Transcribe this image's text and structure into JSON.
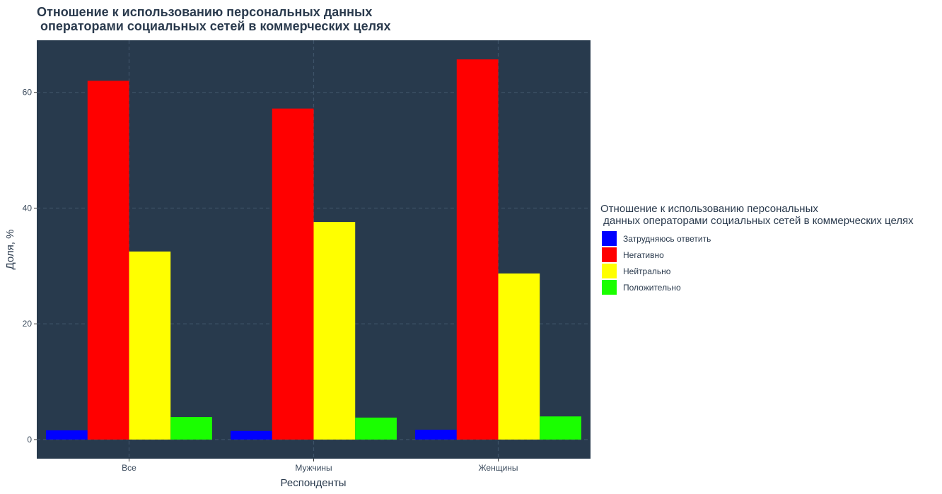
{
  "chart_data": {
    "type": "bar",
    "title_lines": [
      "Отношение к использованию персональных данных",
      " операторами социальных сетей в коммерческих целях"
    ],
    "xlabel": "Респонденты",
    "ylabel": "Доля, %",
    "categories": [
      "Все",
      "Мужчины",
      "Женщины"
    ],
    "yticks": [
      0,
      20,
      40,
      60
    ],
    "ylim": [
      -3.3,
      69
    ],
    "grid": true,
    "legend_position": "right",
    "legend_title_lines": [
      "Отношение к использованию персональных",
      " данных операторами социальных сетей в коммерческих целях"
    ],
    "series": [
      {
        "name": "Затрудняюсь ответить",
        "color": "#0000ff",
        "values": [
          1.6,
          1.5,
          1.7
        ]
      },
      {
        "name": "Негативно",
        "color": "#ff0000",
        "values": [
          62.0,
          57.2,
          65.7
        ]
      },
      {
        "name": "Нейтрально",
        "color": "#ffff00",
        "values": [
          32.5,
          37.6,
          28.7
        ]
      },
      {
        "name": "Положительно",
        "color": "#1aff00",
        "values": [
          3.9,
          3.8,
          4.0
        ]
      }
    ],
    "colors": {
      "panel": "#283a4d",
      "grid": "#3e5368"
    }
  }
}
